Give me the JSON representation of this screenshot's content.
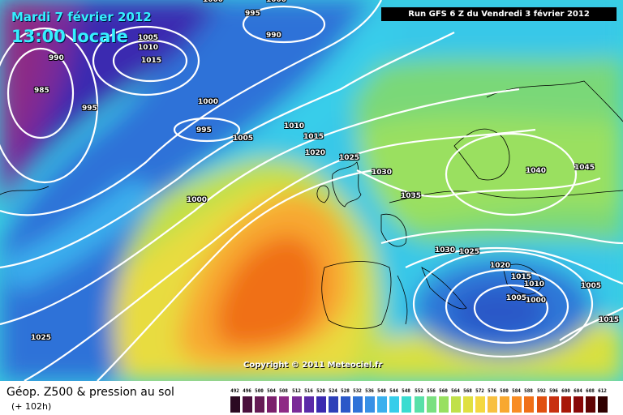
{
  "header": {
    "date": "Mardi 7 février 2012",
    "time": "13:00 locale",
    "run": "Run GFS 6 Z du Vendredi 3 février 2012"
  },
  "copyright": "Copyright © 2011 Meteociel.fr",
  "product": {
    "title": "Géop. Z500 & pression au sol",
    "subtitle": "(+ 102h)"
  },
  "isobar_labels": [
    "1000",
    "995",
    "1000",
    "990",
    "1005",
    "1010",
    "1015",
    "990",
    "985",
    "995",
    "1000",
    "995",
    "1005",
    "1010",
    "1015",
    "1020",
    "1025",
    "1030",
    "1035",
    "1000",
    "1040",
    "1045",
    "1030",
    "1025",
    "1020",
    "1015",
    "1010",
    "1005",
    "1000",
    "1005",
    "1015",
    "1025"
  ],
  "legend": {
    "labels": [
      "492",
      "496",
      "500",
      "504",
      "508",
      "512",
      "516",
      "520",
      "524",
      "528",
      "532",
      "536",
      "540",
      "544",
      "548",
      "552",
      "556",
      "560",
      "564",
      "568",
      "572",
      "576",
      "580",
      "584",
      "588",
      "592",
      "596",
      "600",
      "604",
      "608",
      "612"
    ],
    "colors": [
      "#2b0a22",
      "#4a0f3d",
      "#651a55",
      "#7b1f6c",
      "#8e2a85",
      "#7a2a98",
      "#5b2aa8",
      "#3b2ab0",
      "#2d3fb8",
      "#2b58c8",
      "#2f72d8",
      "#3890e6",
      "#3ab0ee",
      "#37cdea",
      "#3adcd0",
      "#58e0a8",
      "#7ae080",
      "#98e060",
      "#c0e04a",
      "#e0e040",
      "#f4d840",
      "#f8c040",
      "#f8a830",
      "#f88c24",
      "#f07018",
      "#e05010",
      "#c83010",
      "#a81808",
      "#880808",
      "#600404",
      "#300000"
    ]
  }
}
